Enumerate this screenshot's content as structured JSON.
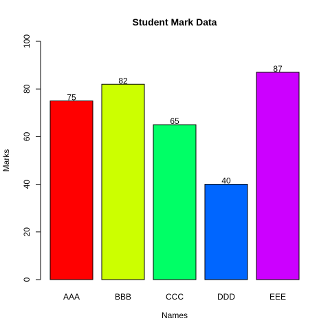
{
  "chart_data": {
    "type": "bar",
    "title": "Student Mark Data",
    "xlabel": "Names",
    "ylabel": "Marks",
    "categories": [
      "AAA",
      "BBB",
      "CCC",
      "DDD",
      "EEE"
    ],
    "values": [
      75,
      82,
      65,
      40,
      87
    ],
    "colors": [
      "#FF0000",
      "#CCFF00",
      "#00FF66",
      "#0066FF",
      "#CC00FF"
    ],
    "ylim": [
      0,
      100
    ],
    "yticks": [
      0,
      20,
      40,
      60,
      80,
      100
    ],
    "grid": false,
    "legend": "none"
  }
}
